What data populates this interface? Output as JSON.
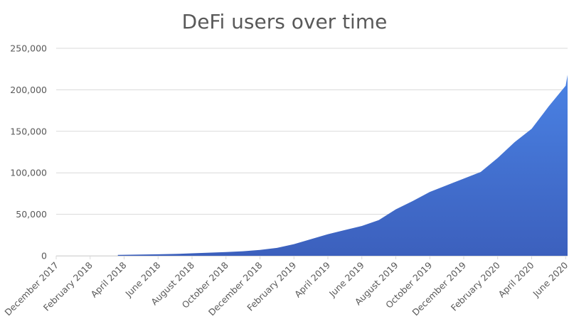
{
  "chart_data": {
    "type": "area",
    "title": "DeFi users over time",
    "xlabel": "",
    "ylabel": "",
    "ylim": [
      0,
      250000
    ],
    "y_ticks": [
      0,
      50000,
      100000,
      150000,
      200000,
      250000
    ],
    "y_tick_labels": [
      "0",
      "50,000",
      "100,000",
      "150,000",
      "200,000",
      "250,000"
    ],
    "x_tick_labels": [
      "December 2017",
      "February 2018",
      "April 2018",
      "June 2018",
      "August 2018",
      "October 2018",
      "December 2018",
      "February 2019",
      "April 2019",
      "June 2019",
      "August 2019",
      "October 2019",
      "December 2019",
      "February 2020",
      "April 2020",
      "June 2020"
    ],
    "grid": true,
    "legend": null,
    "colors": {
      "fill_top": "#4a82e4",
      "fill_bottom": "#3c60bd",
      "grid": "#d9d9d9",
      "text": "#595959"
    },
    "x": [
      "2018-03-20",
      "2018-04",
      "2018-05",
      "2018-06",
      "2018-07",
      "2018-08",
      "2018-09",
      "2018-10",
      "2018-11",
      "2018-12",
      "2019-01",
      "2019-02",
      "2019-03",
      "2019-04",
      "2019-05",
      "2019-06",
      "2019-07",
      "2019-08",
      "2019-09",
      "2019-10",
      "2019-11",
      "2019-12",
      "2020-01",
      "2020-02",
      "2020-03",
      "2020-04",
      "2020-05",
      "2020-06",
      "2020-06-20"
    ],
    "series": [
      {
        "name": "DeFi users",
        "values": [
          1000,
          1200,
          1500,
          1800,
          2200,
          3000,
          3800,
          4500,
          5500,
          7000,
          9500,
          14000,
          20000,
          26000,
          31000,
          36000,
          43000,
          56000,
          66000,
          77000,
          85000,
          93000,
          101000,
          118000,
          137000,
          153000,
          180000,
          205000,
          218000
        ]
      }
    ]
  }
}
